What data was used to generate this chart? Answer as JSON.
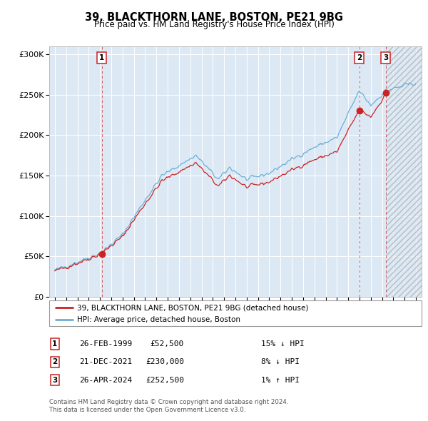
{
  "title": "39, BLACKTHORN LANE, BOSTON, PE21 9BG",
  "subtitle": "Price paid vs. HM Land Registry's House Price Index (HPI)",
  "legend_line1": "39, BLACKTHORN LANE, BOSTON, PE21 9BG (detached house)",
  "legend_line2": "HPI: Average price, detached house, Boston",
  "footer1": "Contains HM Land Registry data © Crown copyright and database right 2024.",
  "footer2": "This data is licensed under the Open Government Licence v3.0.",
  "transactions": [
    {
      "label": "1",
      "date": "26-FEB-1999",
      "price": 52500,
      "pct": "15%",
      "dir": "↓",
      "x_year": 1999.15
    },
    {
      "label": "2",
      "date": "21-DEC-2021",
      "price": 230000,
      "pct": "8%",
      "dir": "↓",
      "x_year": 2021.97
    },
    {
      "label": "3",
      "date": "26-APR-2024",
      "price": 252500,
      "pct": "1%",
      "dir": "↑",
      "x_year": 2024.32
    }
  ],
  "hpi_color": "#6dafd6",
  "price_color": "#cc2222",
  "background_color": "#dce9f5",
  "ylim": [
    0,
    310000
  ],
  "yticks": [
    0,
    50000,
    100000,
    150000,
    200000,
    250000,
    300000
  ],
  "xlim_start": 1994.5,
  "xlim_end": 2027.5,
  "xticks": [
    1995,
    1996,
    1997,
    1998,
    1999,
    2000,
    2001,
    2002,
    2003,
    2004,
    2005,
    2006,
    2007,
    2008,
    2009,
    2010,
    2011,
    2012,
    2013,
    2014,
    2015,
    2016,
    2017,
    2018,
    2019,
    2020,
    2021,
    2022,
    2023,
    2024,
    2025,
    2026,
    2027
  ],
  "table_rows": [
    {
      "label": "1",
      "date": "26-FEB-1999",
      "price": "£52,500",
      "pct": "15% ↓ HPI"
    },
    {
      "label": "2",
      "date": "21-DEC-2021",
      "price": "£230,000",
      "pct": "8% ↓ HPI"
    },
    {
      "label": "3",
      "date": "26-APR-2024",
      "price": "£252,500",
      "pct": "1% ↑ HPI"
    }
  ]
}
